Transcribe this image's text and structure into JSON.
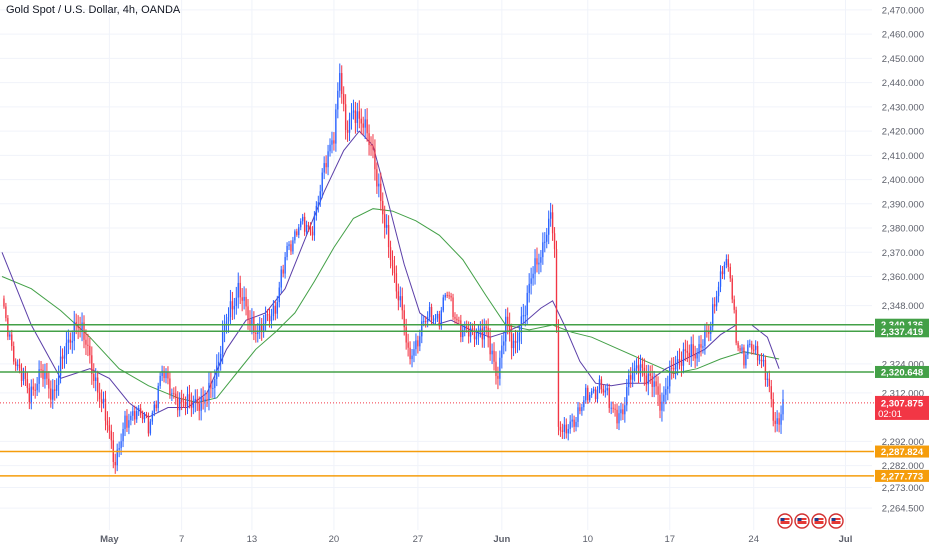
{
  "header": {
    "title": "Gold Spot / U.S. Dollar, 4h, OANDA"
  },
  "colors": {
    "up": "#2962ff",
    "down": "#f23645",
    "ma_fast": "#5b3fa8",
    "ma_slow": "#43a047",
    "resistance": "#43a047",
    "support": "#f59d0c",
    "last_price": "#f23645"
  },
  "chart_data": {
    "type": "candlestick",
    "ylim": [
      2260,
      2472
    ],
    "y_ticks": [
      {
        "label": "2,470.000",
        "value": 2470
      },
      {
        "label": "2,460.000",
        "value": 2460
      },
      {
        "label": "2,450.000",
        "value": 2450
      },
      {
        "label": "2,440.000",
        "value": 2440
      },
      {
        "label": "2,430.000",
        "value": 2430
      },
      {
        "label": "2,420.000",
        "value": 2420
      },
      {
        "label": "2,410.000",
        "value": 2410
      },
      {
        "label": "2,400.000",
        "value": 2400
      },
      {
        "label": "2,390.000",
        "value": 2390
      },
      {
        "label": "2,380.000",
        "value": 2380
      },
      {
        "label": "2,370.000",
        "value": 2370
      },
      {
        "label": "2,360.000",
        "value": 2360
      },
      {
        "label": "2,348.000",
        "value": 2348
      },
      {
        "label": "2,324.000",
        "value": 2324
      },
      {
        "label": "2,312.000",
        "value": 2312
      },
      {
        "label": "2,292.000",
        "value": 2292
      },
      {
        "label": "2,282.000",
        "value": 2282
      },
      {
        "label": "2,273.000",
        "value": 2273
      },
      {
        "label": "2,264.500",
        "value": 2264.5
      }
    ],
    "x_ticks": [
      {
        "label": "May",
        "bold": true,
        "index": 55
      },
      {
        "label": "7",
        "bold": false,
        "index": 92
      },
      {
        "label": "13",
        "bold": false,
        "index": 128
      },
      {
        "label": "20",
        "bold": false,
        "index": 170
      },
      {
        "label": "27",
        "bold": false,
        "index": 213
      },
      {
        "label": "Jun",
        "bold": true,
        "index": 256
      },
      {
        "label": "10",
        "bold": false,
        "index": 300
      },
      {
        "label": "17",
        "bold": false,
        "index": 342
      },
      {
        "label": "24",
        "bold": false,
        "index": 385
      },
      {
        "label": "Jul",
        "bold": true,
        "index": 432
      }
    ],
    "levels": [
      {
        "label": "2,340.136",
        "value": 2340.136,
        "kind": "resistance"
      },
      {
        "label": "2,337.419",
        "value": 2337.419,
        "kind": "resistance"
      },
      {
        "label": "2,320.648",
        "value": 2320.648,
        "kind": "resistance"
      },
      {
        "label": "2,287.824",
        "value": 2287.824,
        "kind": "support"
      },
      {
        "label": "2,277.773",
        "value": 2277.773,
        "kind": "support"
      }
    ],
    "last_price": {
      "label": "2,307.875",
      "value": 2307.875,
      "countdown": "02:01"
    },
    "anchors": [
      [
        0,
        2348
      ],
      [
        8,
        2322
      ],
      [
        14,
        2312
      ],
      [
        20,
        2320
      ],
      [
        26,
        2312
      ],
      [
        32,
        2328
      ],
      [
        38,
        2342
      ],
      [
        44,
        2330
      ],
      [
        50,
        2310
      ],
      [
        55,
        2296
      ],
      [
        58,
        2284
      ],
      [
        63,
        2298
      ],
      [
        68,
        2306
      ],
      [
        75,
        2298
      ],
      [
        82,
        2320
      ],
      [
        88,
        2312
      ],
      [
        92,
        2306
      ],
      [
        98,
        2310
      ],
      [
        103,
        2306
      ],
      [
        110,
        2322
      ],
      [
        116,
        2345
      ],
      [
        121,
        2355
      ],
      [
        126,
        2343
      ],
      [
        132,
        2337
      ],
      [
        140,
        2348
      ],
      [
        146,
        2370
      ],
      [
        152,
        2382
      ],
      [
        158,
        2378
      ],
      [
        164,
        2400
      ],
      [
        170,
        2420
      ],
      [
        173,
        2445
      ],
      [
        176,
        2418
      ],
      [
        180,
        2430
      ],
      [
        186,
        2420
      ],
      [
        190,
        2412
      ],
      [
        196,
        2380
      ],
      [
        200,
        2365
      ],
      [
        205,
        2345
      ],
      [
        208,
        2326
      ],
      [
        212,
        2333
      ],
      [
        216,
        2340
      ],
      [
        220,
        2345
      ],
      [
        224,
        2343
      ],
      [
        228,
        2353
      ],
      [
        232,
        2345
      ],
      [
        236,
        2336
      ],
      [
        242,
        2338
      ],
      [
        248,
        2336
      ],
      [
        254,
        2320
      ],
      [
        258,
        2340
      ],
      [
        262,
        2332
      ],
      [
        268,
        2345
      ],
      [
        272,
        2365
      ],
      [
        277,
        2370
      ],
      [
        281,
        2385
      ],
      [
        283,
        2375
      ],
      [
        285,
        2300
      ],
      [
        288,
        2294
      ],
      [
        292,
        2300
      ],
      [
        296,
        2306
      ],
      [
        300,
        2310
      ],
      [
        306,
        2316
      ],
      [
        312,
        2306
      ],
      [
        318,
        2303
      ],
      [
        322,
        2320
      ],
      [
        326,
        2325
      ],
      [
        330,
        2316
      ],
      [
        334,
        2318
      ],
      [
        338,
        2306
      ],
      [
        344,
        2325
      ],
      [
        350,
        2327
      ],
      [
        356,
        2330
      ],
      [
        362,
        2336
      ],
      [
        366,
        2355
      ],
      [
        370,
        2365
      ],
      [
        373,
        2360
      ],
      [
        376,
        2336
      ],
      [
        380,
        2325
      ],
      [
        384,
        2332
      ],
      [
        388,
        2328
      ],
      [
        392,
        2316
      ],
      [
        396,
        2300
      ],
      [
        398,
        2302
      ],
      [
        400,
        2308
      ]
    ],
    "fast_ma": {
      "name": "",
      "points": [
        [
          0,
          2370
        ],
        [
          15,
          2340
        ],
        [
          30,
          2318
        ],
        [
          45,
          2322
        ],
        [
          55,
          2318
        ],
        [
          65,
          2308
        ],
        [
          75,
          2302
        ],
        [
          85,
          2306
        ],
        [
          95,
          2306
        ],
        [
          105,
          2312
        ],
        [
          115,
          2330
        ],
        [
          125,
          2342
        ],
        [
          135,
          2345
        ],
        [
          145,
          2355
        ],
        [
          155,
          2375
        ],
        [
          165,
          2395
        ],
        [
          175,
          2412
        ],
        [
          183,
          2420
        ],
        [
          190,
          2414
        ],
        [
          198,
          2390
        ],
        [
          206,
          2365
        ],
        [
          214,
          2345
        ],
        [
          222,
          2340
        ],
        [
          230,
          2342
        ],
        [
          240,
          2338
        ],
        [
          250,
          2335
        ],
        [
          258,
          2337
        ],
        [
          266,
          2340
        ],
        [
          276,
          2347
        ],
        [
          282,
          2350
        ],
        [
          288,
          2340
        ],
        [
          296,
          2325
        ],
        [
          304,
          2316
        ],
        [
          312,
          2315
        ],
        [
          320,
          2316
        ],
        [
          330,
          2316
        ],
        [
          340,
          2322
        ],
        [
          350,
          2326
        ],
        [
          360,
          2330
        ],
        [
          368,
          2336
        ],
        [
          376,
          2340
        ],
        [
          384,
          2340
        ],
        [
          392,
          2335
        ],
        [
          398,
          2322
        ]
      ]
    },
    "slow_ma": {
      "name": "",
      "points": [
        [
          0,
          2360
        ],
        [
          15,
          2355
        ],
        [
          30,
          2346
        ],
        [
          45,
          2335
        ],
        [
          60,
          2322
        ],
        [
          75,
          2315
        ],
        [
          90,
          2310
        ],
        [
          100,
          2308
        ],
        [
          110,
          2310
        ],
        [
          120,
          2320
        ],
        [
          130,
          2330
        ],
        [
          140,
          2337
        ],
        [
          150,
          2345
        ],
        [
          160,
          2358
        ],
        [
          170,
          2372
        ],
        [
          180,
          2384
        ],
        [
          190,
          2388
        ],
        [
          200,
          2387
        ],
        [
          212,
          2383
        ],
        [
          224,
          2377
        ],
        [
          236,
          2367
        ],
        [
          248,
          2352
        ],
        [
          258,
          2340
        ],
        [
          270,
          2338
        ],
        [
          282,
          2340
        ],
        [
          292,
          2337
        ],
        [
          302,
          2335
        ],
        [
          316,
          2330
        ],
        [
          330,
          2325
        ],
        [
          344,
          2320
        ],
        [
          356,
          2322
        ],
        [
          368,
          2326
        ],
        [
          380,
          2329
        ],
        [
          392,
          2327
        ],
        [
          398,
          2326
        ]
      ]
    }
  },
  "footer": {
    "flags": [
      "US",
      "US",
      "US",
      "US"
    ]
  }
}
